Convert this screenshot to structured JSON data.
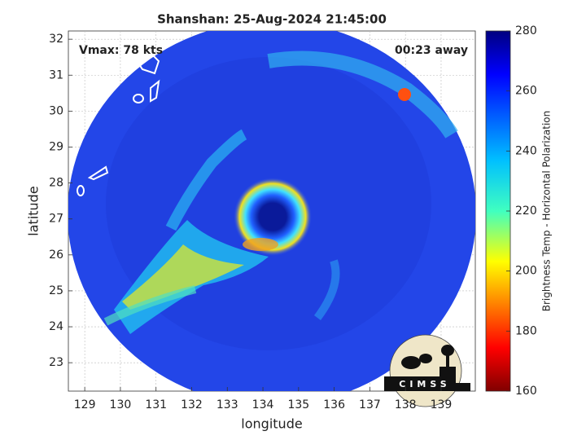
{
  "chart_data": {
    "type": "map",
    "title": "Shanshan: 25-Aug-2024 21:45:00",
    "xlabel": "longitude",
    "ylabel": "latitude",
    "annotations": [
      "Vmax: 78 kts",
      "00:23 away"
    ],
    "logo_text": "CIMSS",
    "xlim": [
      128.54,
      139.96
    ],
    "xticks": [
      129,
      130,
      131,
      132,
      133,
      134,
      135,
      136,
      137,
      138,
      139
    ],
    "ylim": [
      22.21,
      32.23
    ],
    "yticks": [
      23,
      24,
      25,
      26,
      27,
      28,
      29,
      30,
      31,
      32
    ],
    "grid": true,
    "colorbar": {
      "label": "Brightness Temp - Horizontal Polarization",
      "clim": [
        160,
        280
      ],
      "ticks": [
        160,
        180,
        200,
        220,
        240,
        260,
        280
      ]
    }
  }
}
